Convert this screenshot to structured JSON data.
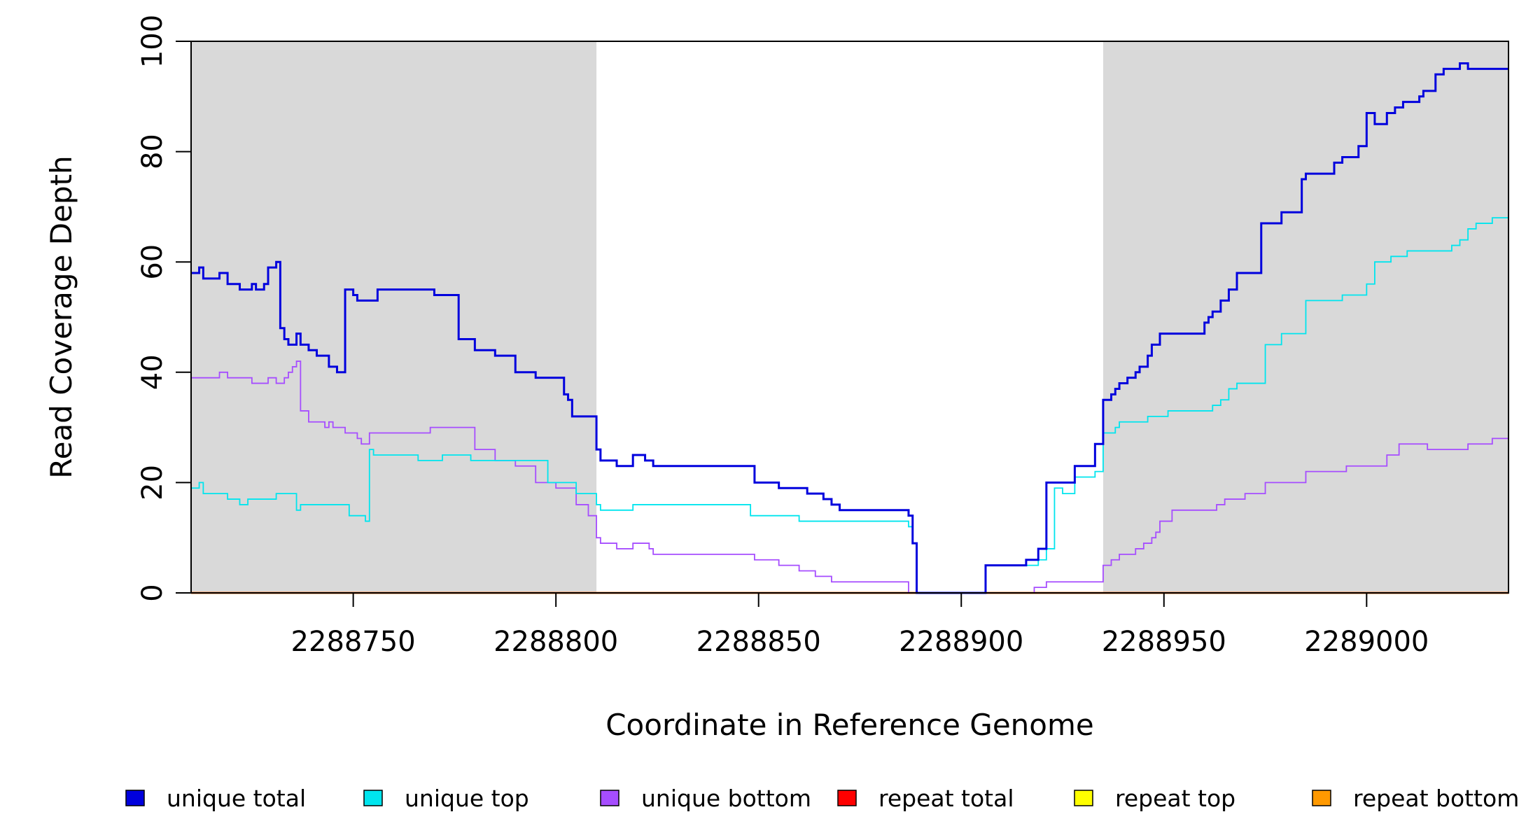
{
  "chart_data": {
    "type": "line",
    "title": "",
    "xlabel": "Coordinate in Reference Genome",
    "ylabel": "Read Coverage Depth",
    "xlim": [
      2288710,
      2289035
    ],
    "ylim": [
      0,
      100
    ],
    "x_ticks": [
      2288750,
      2288800,
      2288850,
      2288900,
      2288950,
      2289000
    ],
    "x_tick_labels": [
      "2288750",
      "2288800",
      "2288850",
      "2288900",
      "2288950",
      "2289000"
    ],
    "y_ticks": [
      0,
      20,
      40,
      60,
      80,
      100
    ],
    "y_tick_labels": [
      "0",
      "20",
      "40",
      "60",
      "80",
      "100"
    ],
    "shaded_regions": [
      [
        2288710,
        2288810
      ],
      [
        2288935,
        2289035
      ]
    ],
    "shade_color": "#d9d9d9",
    "grid": false,
    "legend_position": "bottom",
    "series": [
      {
        "name": "unique total",
        "color": "#0000dd",
        "style": "step",
        "x": [
          2288710,
          2288712,
          2288713,
          2288716,
          2288717,
          2288719,
          2288720,
          2288722,
          2288723,
          2288725,
          2288726,
          2288728,
          2288729,
          2288731,
          2288732,
          2288733,
          2288734,
          2288735,
          2288736,
          2288737,
          2288739,
          2288741,
          2288744,
          2288746,
          2288748,
          2288750,
          2288751,
          2288752,
          2288753,
          2288754,
          2288756,
          2288770,
          2288776,
          2288780,
          2288785,
          2288790,
          2288795,
          2288802,
          2288803,
          2288804,
          2288810,
          2288811,
          2288815,
          2288819,
          2288822,
          2288824,
          2288849,
          2288855,
          2288862,
          2288866,
          2288868,
          2288870,
          2288887,
          2288888,
          2288889,
          2288906,
          2288916,
          2288919,
          2288921,
          2288923,
          2288928,
          2288933,
          2288935,
          2288937,
          2288938,
          2288939,
          2288941,
          2288943,
          2288944,
          2288946,
          2288947,
          2288949,
          2288960,
          2288961,
          2288962,
          2288964,
          2288966,
          2288968,
          2288974,
          2288979,
          2288984,
          2288985,
          2288992,
          2288994,
          2288998,
          2289000,
          2289002,
          2289005,
          2289007,
          2289009,
          2289011,
          2289013,
          2289014,
          2289017,
          2289019,
          2289020,
          2289023,
          2289025,
          2289027,
          2289029,
          2289031,
          2289033,
          2289035
        ],
        "y": [
          58,
          59,
          57,
          57,
          58,
          56,
          56,
          55,
          55,
          56,
          55,
          56,
          59,
          60,
          48,
          46,
          45,
          45,
          47,
          45,
          44,
          43,
          41,
          40,
          55,
          54,
          53,
          53,
          53,
          53,
          55,
          54,
          46,
          44,
          43,
          40,
          39,
          36,
          35,
          32,
          26,
          24,
          23,
          25,
          24,
          23,
          20,
          19,
          18,
          17,
          16,
          15,
          14,
          9,
          0,
          5,
          6,
          8,
          20,
          20,
          23,
          27,
          35,
          36,
          37,
          38,
          39,
          40,
          41,
          43,
          45,
          47,
          49,
          50,
          51,
          53,
          55,
          58,
          67,
          69,
          75,
          76,
          78,
          79,
          81,
          87,
          85,
          87,
          88,
          89,
          89,
          90,
          91,
          94,
          95,
          95,
          96,
          95,
          95,
          95,
          95,
          95,
          95
        ]
      },
      {
        "name": "unique top",
        "color": "#00e5ee",
        "style": "step",
        "x": [
          2288710,
          2288712,
          2288713,
          2288719,
          2288722,
          2288724,
          2288729,
          2288731,
          2288736,
          2288737,
          2288749,
          2288753,
          2288754,
          2288755,
          2288766,
          2288772,
          2288779,
          2288798,
          2288804,
          2288805,
          2288810,
          2288811,
          2288819,
          2288848,
          2288860,
          2288887,
          2288888,
          2288889,
          2288906,
          2288919,
          2288921,
          2288923,
          2288925,
          2288928,
          2288933,
          2288935,
          2288938,
          2288939,
          2288941,
          2288946,
          2288951,
          2288962,
          2288964,
          2288966,
          2288968,
          2288973,
          2288975,
          2288979,
          2288985,
          2288994,
          2289000,
          2289002,
          2289006,
          2289010,
          2289018,
          2289021,
          2289023,
          2289025,
          2289027,
          2289031,
          2289035
        ],
        "y": [
          19,
          20,
          18,
          17,
          16,
          17,
          17,
          18,
          15,
          16,
          14,
          13,
          26,
          25,
          24,
          25,
          24,
          20,
          20,
          18,
          16,
          15,
          16,
          14,
          13,
          12,
          9,
          0,
          5,
          6,
          8,
          19,
          18,
          21,
          22,
          29,
          30,
          31,
          31,
          32,
          33,
          34,
          35,
          37,
          38,
          38,
          45,
          47,
          53,
          54,
          56,
          60,
          61,
          62,
          62,
          63,
          64,
          66,
          67,
          68,
          68
        ]
      },
      {
        "name": "unique bottom",
        "color": "#a64dff",
        "style": "step",
        "x": [
          2288710,
          2288717,
          2288719,
          2288725,
          2288729,
          2288731,
          2288733,
          2288734,
          2288735,
          2288736,
          2288737,
          2288739,
          2288743,
          2288744,
          2288745,
          2288748,
          2288751,
          2288752,
          2288754,
          2288769,
          2288780,
          2288785,
          2288790,
          2288795,
          2288800,
          2288805,
          2288808,
          2288810,
          2288811,
          2288815,
          2288819,
          2288823,
          2288824,
          2288849,
          2288855,
          2288860,
          2288864,
          2288868,
          2288870,
          2288885,
          2288887,
          2288888,
          2288889,
          2288918,
          2288921,
          2288923,
          2288933,
          2288935,
          2288937,
          2288939,
          2288943,
          2288945,
          2288947,
          2288948,
          2288949,
          2288952,
          2288963,
          2288965,
          2288970,
          2288975,
          2288985,
          2288995,
          2289005,
          2289008,
          2289015,
          2289025,
          2289031,
          2289035
        ],
        "y": [
          39,
          40,
          39,
          38,
          39,
          38,
          39,
          40,
          41,
          42,
          33,
          31,
          30,
          31,
          30,
          29,
          28,
          27,
          29,
          30,
          26,
          24,
          23,
          20,
          19,
          16,
          14,
          10,
          9,
          8,
          9,
          8,
          7,
          6,
          5,
          4,
          3,
          2,
          2,
          2,
          0,
          0,
          0,
          1,
          2,
          2,
          2,
          5,
          6,
          7,
          8,
          9,
          10,
          11,
          13,
          15,
          16,
          17,
          18,
          20,
          22,
          23,
          25,
          27,
          26,
          27,
          28,
          27
        ]
      },
      {
        "name": "repeat total",
        "color": "#ff0000",
        "style": "step",
        "x": [
          2288710,
          2289035
        ],
        "y": [
          0,
          0
        ]
      },
      {
        "name": "repeat top",
        "color": "#ffff00",
        "style": "step",
        "x": [
          2288710,
          2289035
        ],
        "y": [
          0,
          0
        ]
      },
      {
        "name": "repeat bottom",
        "color": "#ff9900",
        "style": "step",
        "x": [
          2288710,
          2289035
        ],
        "y": [
          0,
          0
        ]
      }
    ]
  }
}
